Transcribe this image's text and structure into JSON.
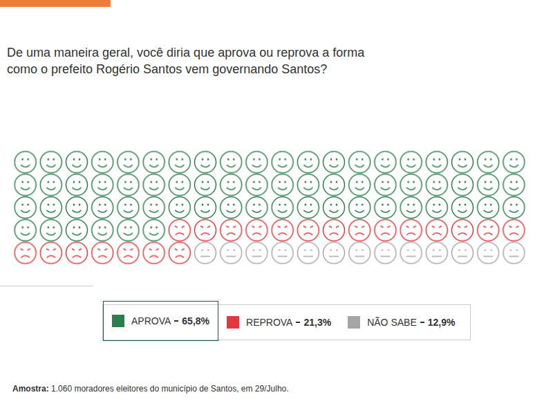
{
  "chart_data": {
    "type": "pictograph",
    "title": "De uma maneira geral, você diria que aprova ou reprova a forma como o prefeito Rogério Santos vem governando Santos?",
    "series": [
      {
        "name": "APROVA",
        "color": "#2e7d4f",
        "values": [
          65.8
        ],
        "value_labels": [
          "65,8%"
        ],
        "icons": 66,
        "marker": "smile"
      },
      {
        "name": "REPROVA",
        "color": "#e0393e",
        "values": [
          21.3
        ],
        "value_labels": [
          "21,3%"
        ],
        "icons": 21,
        "marker": "frown"
      },
      {
        "name": "NÃO SABE",
        "color": "#a6a6a6",
        "values": [
          12.9
        ],
        "value_labels": [
          "12,9%"
        ],
        "icons": 13,
        "marker": "neutral"
      }
    ],
    "footnote": {
      "label": "Amostra:",
      "text": "1.060 moradores eleitores do município de Santos, em 29/Julho."
    },
    "legend": "bottom",
    "data_labels": true,
    "tick_labels": false,
    "grid": false
  }
}
